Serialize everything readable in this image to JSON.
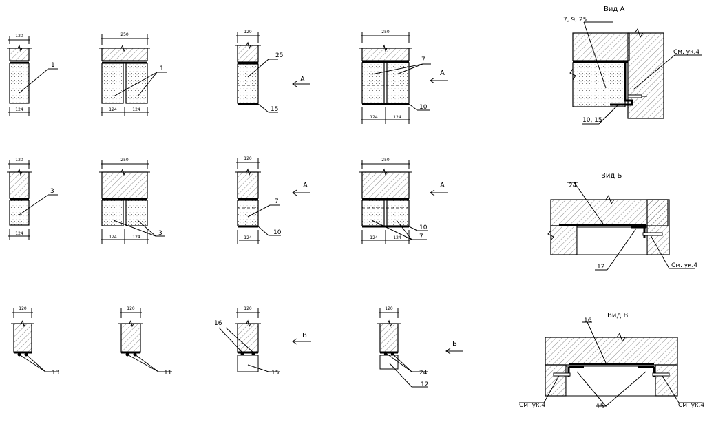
{
  "dims": {
    "d120": "120",
    "d250": "250",
    "d124": "124"
  },
  "labels": {
    "p1": "1",
    "p3": "3",
    "p7": "7",
    "p10": "10",
    "p11": "11",
    "p12": "12",
    "p13": "13",
    "p15": "15",
    "p16": "16",
    "p24": "24",
    "p25": "25",
    "p7_9_25": "7, 9, 25",
    "p10_15": "10, 15",
    "see_ref": "См. ук.4"
  },
  "arrows": {
    "A": "А",
    "B": "Б",
    "V": "В"
  },
  "views": {
    "a": "Вид А",
    "b": "Вид Б",
    "v": "Вид В"
  }
}
